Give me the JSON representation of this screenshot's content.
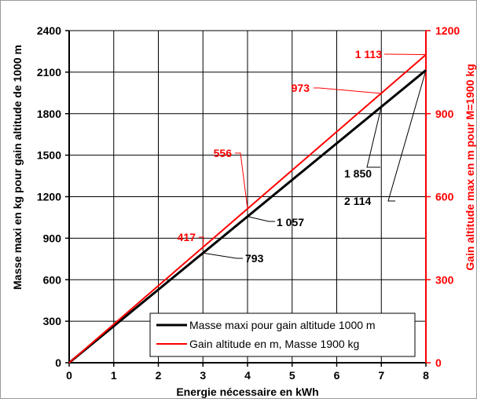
{
  "chart_data": {
    "type": "line",
    "xlabel": "Energie nécessaire en kWh",
    "ylabel": "Masse maxi en kg pour gain altitude de 1000 m",
    "y2label": "Gain altitude max en m pour M=1900 kg",
    "xlim": [
      0,
      8
    ],
    "ylim": [
      0,
      2400
    ],
    "y2lim": [
      0,
      1200
    ],
    "xticks": [
      "0",
      "1",
      "2",
      "3",
      "4",
      "5",
      "6",
      "7",
      "8"
    ],
    "yticks": [
      "0",
      "300",
      "600",
      "900",
      "1200",
      "1500",
      "1800",
      "2100",
      "2400"
    ],
    "y2ticks": [
      "0",
      "300",
      "600",
      "900",
      "1200"
    ],
    "grid": true,
    "legend_position": "bottom-right",
    "colors": {
      "primary": "#000000",
      "secondary": "#ff0000",
      "grid": "#000000",
      "frame": "#9a9a9a"
    },
    "series": [
      {
        "name": "Masse maxi pour gain altitude 1000 m",
        "axis": "left",
        "color": "#000000",
        "x": [
          0,
          8
        ],
        "y": [
          0,
          2114
        ]
      },
      {
        "name": "Gain altitude en m, Masse 1900 kg",
        "axis": "right",
        "color": "#ff0000",
        "x": [
          0,
          8
        ],
        "y": [
          0,
          1113
        ]
      }
    ],
    "annotations": [
      {
        "text": "793",
        "series": 0,
        "x": 3,
        "y": 793
      },
      {
        "text": "1 057",
        "series": 0,
        "x": 4,
        "y": 1057
      },
      {
        "text": "1 850",
        "series": 0,
        "x": 7,
        "y": 1850
      },
      {
        "text": "2 114",
        "series": 0,
        "x": 8,
        "y": 2114
      },
      {
        "text": "417",
        "series": 1,
        "x": 3,
        "y": 417
      },
      {
        "text": "556",
        "series": 1,
        "x": 4,
        "y": 556
      },
      {
        "text": "973",
        "series": 1,
        "x": 7,
        "y": 973
      },
      {
        "text": "1 113",
        "series": 1,
        "x": 8,
        "y": 1113
      }
    ]
  }
}
